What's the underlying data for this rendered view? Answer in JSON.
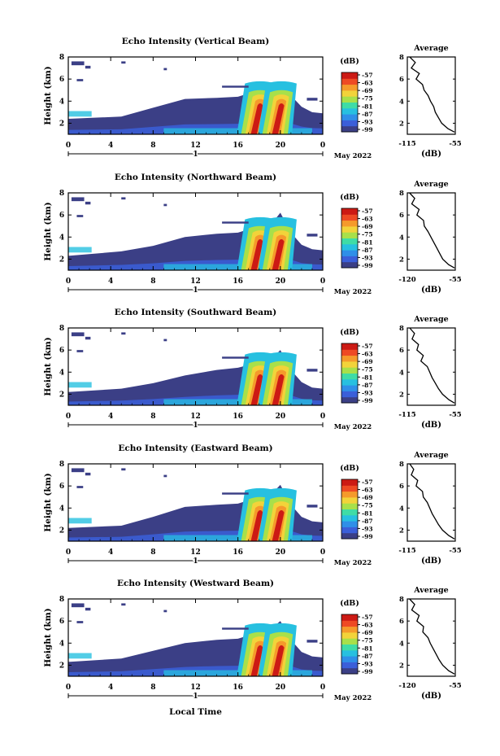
{
  "figure": {
    "xlabel_bottom": "Local Time",
    "date_label": "May 2022",
    "day_label": "1",
    "colorbar_unit": "(dB)",
    "colorbar_ticks": [
      "-57",
      "-63",
      "-69",
      "-75",
      "-81",
      "-87",
      "-93",
      "-99"
    ],
    "colors": [
      "#3b3f86",
      "#3b5fd9",
      "#2f8fe8",
      "#27c0e0",
      "#3fdca6",
      "#a8e04a",
      "#f2d33a",
      "#f59a2b",
      "#ee4a24",
      "#cc1a14"
    ],
    "profile_title": "Average",
    "profile_xlabel": "(dB)"
  },
  "chart_data": [
    {
      "type": "heatmap",
      "title": "Echo Intensity (Vertical Beam)",
      "ylabel": "Height (km)",
      "xlim": [
        0,
        24
      ],
      "ylim": [
        1,
        8
      ],
      "xticks": [
        "0",
        "4",
        "8",
        "12",
        "16",
        "20",
        "0"
      ],
      "yticks": [
        "2",
        "4",
        "6",
        "8"
      ],
      "cloud": {
        "x": [
          0,
          5,
          8,
          11,
          14,
          16,
          18,
          19.5,
          20,
          21,
          22,
          23,
          24
        ],
        "top": [
          2.4,
          2.6,
          3.4,
          4.2,
          4.3,
          4.4,
          5.0,
          5.5,
          5.8,
          4.5,
          3.5,
          3.0,
          2.9
        ]
      },
      "intense_x": [
        17.5,
        19.5
      ],
      "profile": {
        "xticks": [
          "-115",
          "-55"
        ],
        "xlim": [
          -115,
          -55
        ],
        "h": [
          8,
          7.5,
          7,
          6.5,
          6,
          5.5,
          5,
          4.5,
          4,
          3.5,
          3,
          2.5,
          2,
          1.5,
          1.2
        ],
        "v": [
          -112,
          -105,
          -110,
          -100,
          -104,
          -96,
          -94,
          -89,
          -86,
          -82,
          -80,
          -76,
          -72,
          -64,
          -56
        ]
      }
    },
    {
      "type": "heatmap",
      "title": "Echo Intensity (Northward Beam)",
      "ylabel": "Height (km)",
      "xlim": [
        0,
        24
      ],
      "ylim": [
        1,
        8
      ],
      "xticks": [
        "0",
        "4",
        "8",
        "12",
        "16",
        "20",
        "0"
      ],
      "yticks": [
        "2",
        "4",
        "6",
        "8"
      ],
      "cloud": {
        "x": [
          0,
          5,
          8,
          11,
          14,
          16,
          18,
          19.5,
          20,
          21,
          22,
          23,
          24
        ],
        "top": [
          2.3,
          2.7,
          3.2,
          4.0,
          4.3,
          4.4,
          5.0,
          5.6,
          6.2,
          4.4,
          3.3,
          2.9,
          2.8
        ]
      },
      "intense_x": [
        17.5,
        19.5
      ],
      "profile": {
        "xticks": [
          "-120",
          "-55"
        ],
        "xlim": [
          -120,
          -55
        ],
        "h": [
          8,
          7.5,
          7,
          6.5,
          6,
          5.5,
          5,
          4.5,
          4,
          3.5,
          3,
          2.5,
          2,
          1.5,
          1.2
        ],
        "v": [
          -117,
          -110,
          -114,
          -104,
          -107,
          -98,
          -97,
          -92,
          -88,
          -84,
          -80,
          -76,
          -72,
          -64,
          -56
        ]
      }
    },
    {
      "type": "heatmap",
      "title": "Echo Intensity (Southward Beam)",
      "ylabel": "Height (km)",
      "xlim": [
        0,
        24
      ],
      "ylim": [
        1,
        8
      ],
      "xticks": [
        "0",
        "4",
        "8",
        "12",
        "16",
        "20",
        "0"
      ],
      "yticks": [
        "2",
        "4",
        "6",
        "8"
      ],
      "cloud": {
        "x": [
          0,
          5,
          8,
          11,
          14,
          16,
          18,
          19.5,
          20,
          21,
          22,
          23,
          24
        ],
        "top": [
          2.2,
          2.5,
          3.0,
          3.7,
          4.2,
          4.4,
          4.9,
          5.5,
          6.0,
          4.2,
          3.1,
          2.6,
          2.5
        ]
      },
      "intense_x": [
        17.5,
        19.5
      ],
      "profile": {
        "xticks": [
          "-115",
          "-55"
        ],
        "xlim": [
          -115,
          -55
        ],
        "h": [
          8,
          7.5,
          7,
          6.5,
          6,
          5.5,
          5,
          4.5,
          4,
          3.5,
          3,
          2.5,
          2,
          1.5,
          1.2
        ],
        "v": [
          -112,
          -106,
          -109,
          -101,
          -103,
          -95,
          -98,
          -90,
          -87,
          -84,
          -80,
          -76,
          -71,
          -63,
          -56
        ]
      }
    },
    {
      "type": "heatmap",
      "title": "Echo Intensity (Eastward Beam)",
      "ylabel": "Height (km)",
      "xlim": [
        0,
        24
      ],
      "ylim": [
        1,
        8
      ],
      "xticks": [
        "0",
        "4",
        "8",
        "12",
        "16",
        "20",
        "0"
      ],
      "yticks": [
        "2",
        "4",
        "6",
        "8"
      ],
      "cloud": {
        "x": [
          0,
          5,
          8,
          11,
          14,
          16,
          18,
          19.5,
          20,
          21,
          22,
          23,
          24
        ],
        "top": [
          2.2,
          2.4,
          3.2,
          4.1,
          4.3,
          4.4,
          5.0,
          5.6,
          6.1,
          4.3,
          3.2,
          2.8,
          2.7
        ]
      },
      "intense_x": [
        17.5,
        19.5
      ],
      "profile": {
        "xticks": [
          "-115",
          "-55"
        ],
        "xlim": [
          -115,
          -55
        ],
        "h": [
          8,
          7.5,
          7,
          6.5,
          6,
          5.5,
          5,
          4.5,
          4,
          3.5,
          3,
          2.5,
          2,
          1.5,
          1.2
        ],
        "v": [
          -112,
          -107,
          -110,
          -102,
          -104,
          -96,
          -95,
          -90,
          -87,
          -84,
          -80,
          -76,
          -71,
          -63,
          -56
        ]
      }
    },
    {
      "type": "heatmap",
      "title": "Echo Intensity (Westward Beam)",
      "ylabel": "Height (km)",
      "xlim": [
        0,
        24
      ],
      "ylim": [
        1,
        8
      ],
      "xticks": [
        "0",
        "4",
        "8",
        "12",
        "16",
        "20",
        "0"
      ],
      "yticks": [
        "2",
        "4",
        "6",
        "8"
      ],
      "cloud": {
        "x": [
          0,
          5,
          8,
          11,
          14,
          16,
          18,
          19.5,
          20,
          21,
          22,
          23,
          24
        ],
        "top": [
          2.3,
          2.6,
          3.3,
          4.0,
          4.3,
          4.4,
          5.0,
          5.6,
          6.0,
          4.3,
          3.2,
          2.8,
          2.7
        ]
      },
      "intense_x": [
        17.5,
        19.5
      ],
      "profile": {
        "xticks": [
          "-120",
          "-55"
        ],
        "xlim": [
          -120,
          -55
        ],
        "h": [
          8,
          7.5,
          7,
          6.5,
          6,
          5.5,
          5,
          4.5,
          4,
          3.5,
          3,
          2.5,
          2,
          1.5,
          1.2
        ],
        "v": [
          -117,
          -110,
          -114,
          -104,
          -107,
          -98,
          -99,
          -92,
          -89,
          -85,
          -81,
          -77,
          -72,
          -64,
          -56
        ]
      }
    }
  ]
}
